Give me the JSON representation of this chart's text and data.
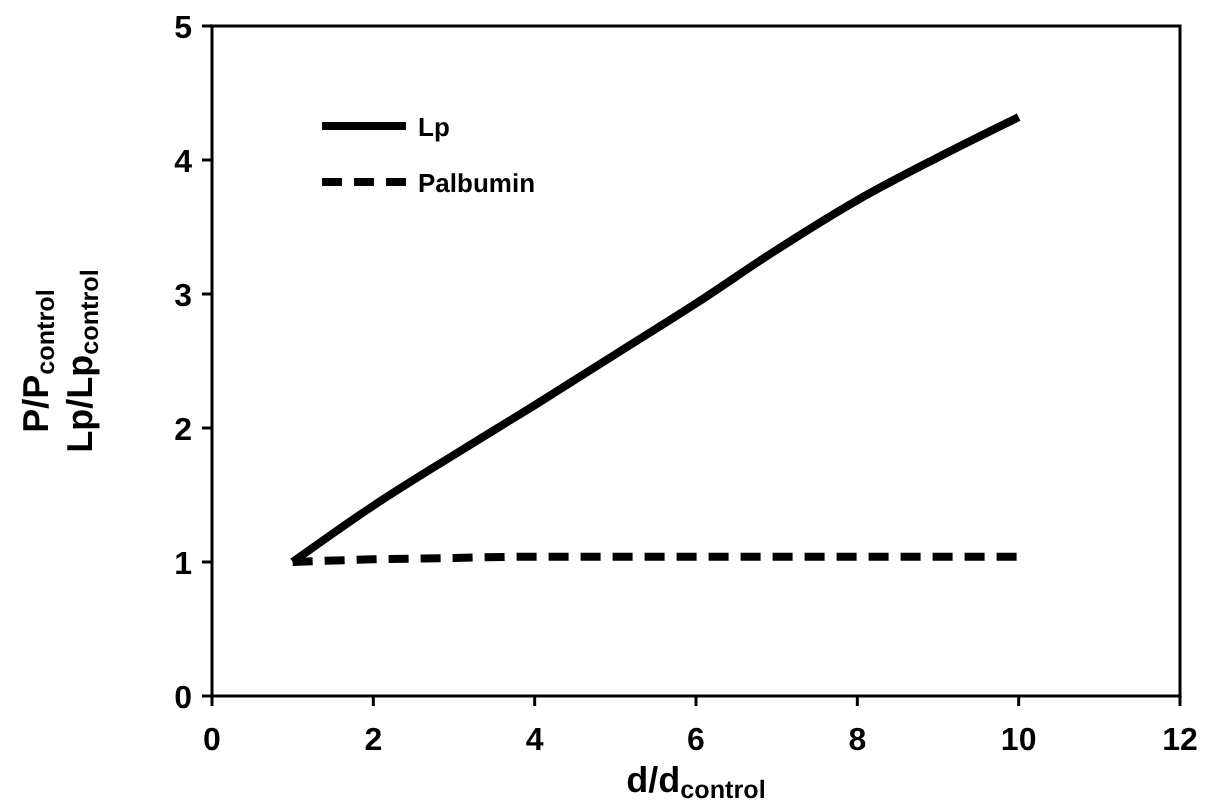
{
  "chart_data": {
    "type": "line",
    "xlabel": "d/d$_{control}$",
    "ylabel": "P/P$_{control}$\nLp/Lp$_{control}$",
    "x": [
      1,
      2,
      3,
      4,
      5,
      6,
      7,
      8,
      9,
      10
    ],
    "series": [
      {
        "name": "Lp",
        "color": "#000000",
        "line_style": "solid",
        "values": [
          1,
          1.42,
          1.8,
          2.17,
          2.55,
          2.93,
          3.33,
          3.7,
          4.02,
          4.32
        ]
      },
      {
        "name": "Palbumin",
        "color": "#000000",
        "line_style": "dashed",
        "values": [
          1,
          1.02,
          1.03,
          1.04,
          1.04,
          1.04,
          1.04,
          1.04,
          1.04,
          1.04
        ]
      }
    ],
    "xlim": [
      0,
      12
    ],
    "xticks": [
      0,
      2,
      4,
      6,
      8,
      10,
      12
    ],
    "ylim": [
      0,
      5
    ],
    "yticks": [
      0,
      1,
      2,
      3,
      4,
      5
    ],
    "grid": false,
    "legend": "top left"
  }
}
